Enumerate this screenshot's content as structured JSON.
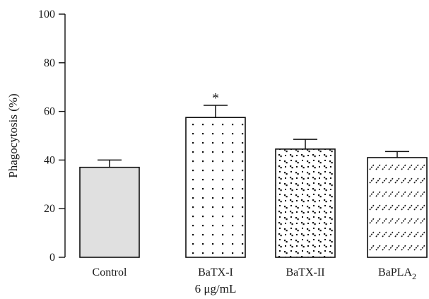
{
  "chart_data": {
    "type": "bar",
    "title": "",
    "xlabel": "6 μg/mL",
    "ylabel": "Phagocytosis (%)",
    "ylim": [
      0,
      100
    ],
    "yticks": [
      0,
      20,
      40,
      60,
      80,
      100
    ],
    "grid": false,
    "categories": [
      "Control",
      "BaTX-I",
      "BaTX-II",
      "BaPLA2"
    ],
    "category_display": [
      {
        "main": "Control",
        "sub": ""
      },
      {
        "main": "BaTX-I",
        "sub": ""
      },
      {
        "main": "BaTX-II",
        "sub": ""
      },
      {
        "main": "BaPLA",
        "sub": "2"
      }
    ],
    "values": [
      37,
      57.5,
      44.5,
      41
    ],
    "errors": [
      3,
      5,
      4,
      2.5
    ],
    "significance": [
      "",
      "*",
      "",
      ""
    ],
    "fill_patterns": [
      "solid-gray",
      "dots",
      "checker",
      "hatch"
    ],
    "colors": {
      "control_fill": "#e0e0e0",
      "bar_stroke": "#111111",
      "axis": "#111111",
      "pattern": "#111111"
    }
  }
}
